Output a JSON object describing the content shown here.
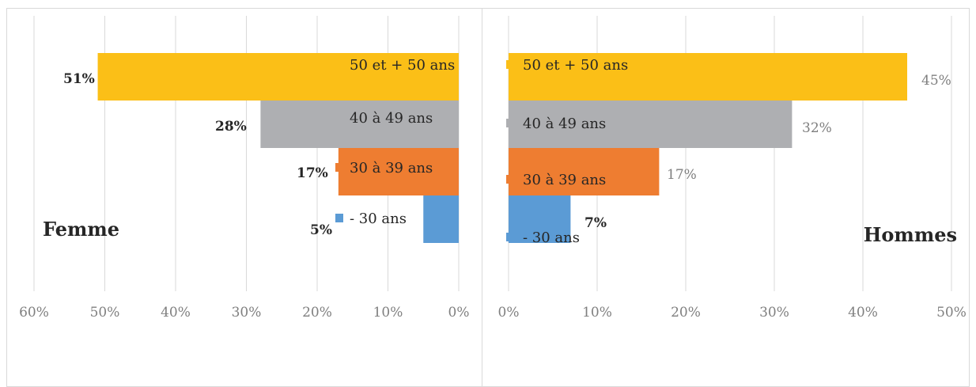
{
  "chart_data": [
    {
      "type": "bar",
      "orientation": "horizontal",
      "direction": "reversed",
      "side_title": "Femme",
      "xlim": [
        0,
        0.6
      ],
      "tick_labels": [
        "60%",
        "50%",
        "40%",
        "30%",
        "20%",
        "10%",
        "0%"
      ],
      "grid": true,
      "categories": [
        "50 et + 50 ans",
        "40 à 49 ans",
        "30 à 39 ans",
        "- 30 ans"
      ],
      "values": [
        0.51,
        0.28,
        0.17,
        0.05
      ],
      "data_labels": [
        "51%",
        "28%",
        "17%",
        "5%"
      ]
    },
    {
      "type": "bar",
      "orientation": "horizontal",
      "direction": "normal",
      "side_title": "Hommes",
      "xlim": [
        0,
        0.5
      ],
      "tick_labels": [
        "0%",
        "10%",
        "20%",
        "30%",
        "40%",
        "50%"
      ],
      "grid": true,
      "categories": [
        "50 et + 50 ans",
        "40 à 49 ans",
        "30 à 39 ans",
        "- 30 ans"
      ],
      "values": [
        0.45,
        0.32,
        0.17,
        0.07
      ],
      "data_labels": [
        "45%",
        "32%",
        "17%",
        "7%"
      ]
    }
  ],
  "colors": {
    "50 et + 50 ans": "#FBBF17",
    "40 à 49 ans": "#AEAFB2",
    "30 à 39 ans": "#EE7D31",
    "- 30 ans": "#5B9BD5",
    "grid": "#D9D9D9",
    "tick_text": "#7F7F7F",
    "text": "#262626"
  }
}
